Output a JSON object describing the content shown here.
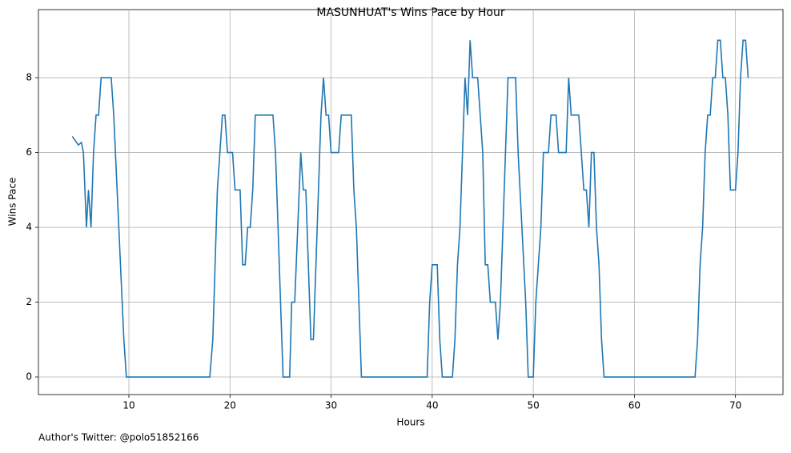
{
  "chart_data": {
    "type": "line",
    "title": "MASUNHUAT's Wins Pace by Hour",
    "xlabel": "Hours",
    "ylabel": "Wins Pace",
    "footer": "Author's Twitter: @polo51852166",
    "x": [
      4.4,
      5.0,
      5.3,
      5.5,
      5.8,
      6.0,
      6.25,
      6.5,
      6.75,
      7.0,
      7.25,
      8.0,
      8.25,
      8.5,
      9.0,
      9.5,
      9.75,
      18.0,
      18.3,
      18.75,
      19.25,
      19.5,
      19.75,
      20.25,
      20.5,
      21.0,
      21.25,
      21.5,
      21.75,
      22.0,
      22.25,
      22.5,
      24.25,
      24.5,
      25.0,
      25.25,
      25.9,
      26.1,
      26.4,
      27.0,
      27.25,
      27.5,
      28.0,
      28.25,
      29.0,
      29.25,
      29.5,
      29.75,
      30.0,
      30.75,
      31.0,
      32.0,
      32.25,
      32.5,
      33.0,
      39.5,
      39.75,
      40.0,
      40.5,
      40.75,
      41.0,
      42.0,
      42.25,
      42.5,
      42.75,
      43.25,
      43.5,
      43.75,
      44.0,
      44.5,
      45.0,
      45.25,
      45.5,
      45.75,
      46.25,
      46.5,
      46.75,
      47.0,
      47.5,
      48.25,
      48.5,
      49.25,
      49.5,
      50.0,
      50.25,
      50.75,
      51.0,
      51.5,
      51.75,
      52.25,
      52.5,
      53.25,
      53.5,
      53.75,
      54.5,
      55.0,
      55.25,
      55.5,
      55.75,
      56.0,
      56.25,
      56.5,
      56.75,
      57.0,
      66.0,
      66.25,
      66.5,
      66.75,
      67.0,
      67.25,
      67.5,
      67.75,
      68.0,
      68.25,
      68.5,
      68.75,
      69.0,
      69.25,
      69.5,
      70.0,
      70.25,
      70.5,
      70.75,
      71.0,
      71.25
    ],
    "series": [
      {
        "name": "Wins Pace",
        "color": "#1f77b4",
        "values": [
          6.43,
          6.2,
          6.27,
          6.0,
          4,
          5,
          4,
          6,
          7,
          7,
          8,
          8,
          8,
          7,
          4,
          1,
          0,
          0,
          1,
          5,
          7,
          7,
          6,
          6,
          5,
          5,
          3,
          3,
          4,
          4,
          5,
          7,
          7,
          6,
          2,
          0,
          0,
          2,
          2,
          6,
          5,
          5,
          1,
          1,
          7,
          8,
          7,
          7,
          6,
          6,
          7,
          7,
          5,
          4,
          0,
          0,
          2,
          3,
          3,
          1,
          0,
          0,
          1,
          3,
          4,
          8,
          7,
          9,
          8,
          8,
          6,
          3,
          3,
          2,
          2,
          1,
          2,
          4,
          8,
          8,
          6,
          2,
          0,
          0,
          2,
          4,
          6,
          6,
          7,
          7,
          6,
          6,
          8,
          7,
          7,
          5,
          5,
          4,
          6,
          6,
          4,
          3,
          1,
          0,
          0,
          1,
          3,
          4,
          6,
          7,
          7,
          8,
          8,
          9,
          9,
          8,
          8,
          7,
          5,
          5,
          6,
          8,
          9,
          9,
          8
        ]
      }
    ],
    "xlim": [
      1.05,
      74.7
    ],
    "ylim": [
      -0.47,
      9.82
    ],
    "xticks": [
      10,
      20,
      30,
      40,
      50,
      60,
      70
    ],
    "yticks": [
      0,
      2,
      4,
      6,
      8
    ],
    "grid": true
  }
}
